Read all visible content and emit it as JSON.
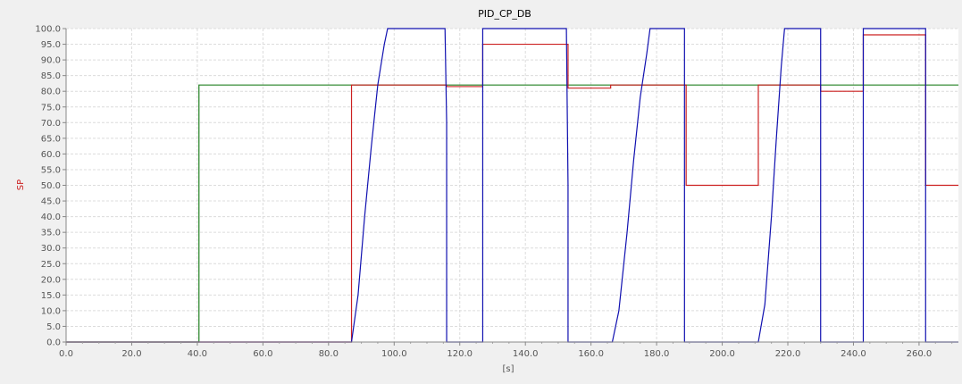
{
  "chart_data": {
    "type": "line",
    "title": "PID_CP_DB",
    "xlabel": "[s]",
    "ylabel": "SP",
    "xlim": [
      0,
      272
    ],
    "ylim": [
      0,
      100
    ],
    "grid": true,
    "x_ticks": [
      "0.0",
      "20.0",
      "40.0",
      "60.0",
      "80.0",
      "100.0",
      "120.0",
      "140.0",
      "160.0",
      "180.0",
      "200.0",
      "220.0",
      "240.0",
      "260.0"
    ],
    "x_tick_values": [
      0,
      20,
      40,
      60,
      80,
      100,
      120,
      140,
      160,
      180,
      200,
      220,
      240,
      260
    ],
    "y_ticks": [
      "0.0",
      "5.0",
      "10.0",
      "15.0",
      "20.0",
      "25.0",
      "30.0",
      "35.0",
      "40.0",
      "45.0",
      "50.0",
      "55.0",
      "60.0",
      "65.0",
      "70.0",
      "75.0",
      "80.0",
      "85.0",
      "90.0",
      "95.0",
      "100.0"
    ],
    "y_tick_values": [
      0,
      5,
      10,
      15,
      20,
      25,
      30,
      35,
      40,
      45,
      50,
      55,
      60,
      65,
      70,
      75,
      80,
      85,
      90,
      95,
      100
    ],
    "colors": {
      "setpoint": "#208020",
      "process": "#cc2020",
      "output": "#1010b0",
      "ylabel": "#cc2020"
    },
    "series": [
      {
        "color": "#208020",
        "x": [
          0,
          40.5,
          40.5,
          272
        ],
        "y": [
          0,
          0,
          82,
          82
        ]
      },
      {
        "color": "#cc2020",
        "x": [
          0,
          87,
          87,
          116,
          116,
          127,
          127,
          153,
          153,
          166,
          166,
          189,
          189,
          211,
          211,
          230,
          230,
          243,
          243,
          262,
          262,
          272
        ],
        "y": [
          0,
          0,
          82,
          82,
          81.5,
          81.5,
          95,
          95,
          81,
          81,
          82,
          82,
          50,
          50,
          82,
          82,
          80,
          80,
          98,
          98,
          50,
          50
        ]
      },
      {
        "color": "#1010b0",
        "x": [
          0,
          87,
          89,
          91,
          93,
          95,
          97,
          98,
          115.5,
          116,
          116,
          127,
          127,
          152.5,
          153,
          153,
          166.5,
          168.5,
          171,
          173,
          175,
          177,
          178,
          188.5,
          188.5,
          211,
          213,
          215,
          216.5,
          218,
          219,
          230,
          230,
          243,
          243,
          262,
          262,
          272
        ],
        "y": [
          0,
          0,
          15,
          40,
          62,
          82,
          95,
          100,
          100,
          70,
          0,
          0,
          100,
          100,
          50,
          0,
          0,
          10,
          35,
          58,
          78,
          92,
          100,
          100,
          0,
          0,
          12,
          40,
          65,
          88,
          100,
          100,
          0,
          0,
          100,
          100,
          0,
          0
        ]
      }
    ]
  }
}
